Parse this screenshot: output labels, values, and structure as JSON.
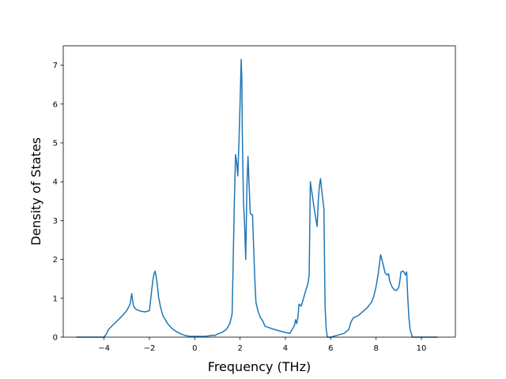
{
  "chart_data": {
    "type": "line",
    "title": "",
    "xlabel": "Frequency (THz)",
    "ylabel": "Density of States",
    "xlim": [
      -5.8,
      11.5
    ],
    "ylim": [
      0,
      7.5
    ],
    "xticks": [
      -4,
      -2,
      0,
      2,
      4,
      6,
      8,
      10
    ],
    "yticks": [
      0,
      1,
      2,
      3,
      4,
      5,
      6,
      7
    ],
    "grid": false,
    "legend": "none",
    "series": [
      {
        "color": "#1f77b4",
        "x": [
          -5.2,
          -4.5,
          -4.0,
          -3.9,
          -3.8,
          -3.6,
          -3.4,
          -3.2,
          -3.0,
          -2.85,
          -2.78,
          -2.74,
          -2.7,
          -2.6,
          -2.4,
          -2.2,
          -2.0,
          -1.85,
          -1.8,
          -1.75,
          -1.7,
          -1.65,
          -1.6,
          -1.5,
          -1.4,
          -1.2,
          -1.0,
          -0.8,
          -0.6,
          -0.4,
          -0.2,
          0.0,
          0.2,
          0.4,
          0.6,
          0.8,
          0.9,
          1.0,
          1.2,
          1.4,
          1.55,
          1.65,
          1.75,
          1.8,
          1.85,
          1.9,
          1.95,
          2.0,
          2.05,
          2.08,
          2.1,
          2.15,
          2.2,
          2.25,
          2.3,
          2.35,
          2.4,
          2.45,
          2.5,
          2.55,
          2.6,
          2.65,
          2.7,
          2.8,
          2.9,
          3.0,
          3.1,
          3.5,
          4.0,
          4.2,
          4.3,
          4.4,
          4.45,
          4.5,
          4.55,
          4.6,
          4.7,
          4.8,
          4.9,
          5.0,
          5.05,
          5.1,
          5.2,
          5.3,
          5.4,
          5.45,
          5.5,
          5.55,
          5.6,
          5.7,
          5.75,
          5.8,
          5.85,
          6.0,
          6.3,
          6.6,
          6.8,
          6.9,
          7.0,
          7.2,
          7.4,
          7.6,
          7.8,
          7.9,
          8.0,
          8.1,
          8.2,
          8.3,
          8.4,
          8.5,
          8.55,
          8.6,
          8.7,
          8.8,
          8.9,
          9.0,
          9.05,
          9.1,
          9.2,
          9.3,
          9.35,
          9.4,
          9.45,
          9.5,
          9.6,
          10.0,
          10.7
        ],
        "y": [
          0.0,
          0.0,
          0.0,
          0.08,
          0.2,
          0.32,
          0.43,
          0.55,
          0.68,
          0.85,
          1.12,
          0.95,
          0.8,
          0.72,
          0.67,
          0.65,
          0.68,
          1.45,
          1.62,
          1.7,
          1.55,
          1.35,
          1.05,
          0.75,
          0.55,
          0.35,
          0.22,
          0.14,
          0.08,
          0.04,
          0.02,
          0.02,
          0.02,
          0.02,
          0.03,
          0.05,
          0.04,
          0.08,
          0.12,
          0.2,
          0.35,
          0.6,
          3.5,
          4.7,
          4.5,
          4.15,
          5.0,
          6.0,
          7.15,
          6.6,
          5.2,
          3.5,
          2.9,
          2.0,
          3.8,
          4.65,
          3.9,
          3.2,
          3.15,
          3.15,
          2.3,
          1.5,
          0.9,
          0.65,
          0.5,
          0.42,
          0.28,
          0.2,
          0.12,
          0.1,
          0.2,
          0.3,
          0.45,
          0.35,
          0.5,
          0.85,
          0.8,
          1.0,
          1.2,
          1.4,
          1.6,
          4.0,
          3.6,
          3.2,
          2.85,
          3.5,
          3.9,
          4.08,
          3.8,
          3.3,
          0.8,
          0.2,
          0.0,
          0.0,
          0.05,
          0.1,
          0.2,
          0.4,
          0.5,
          0.55,
          0.65,
          0.75,
          0.9,
          1.05,
          1.3,
          1.65,
          2.12,
          1.9,
          1.65,
          1.6,
          1.63,
          1.45,
          1.3,
          1.22,
          1.2,
          1.28,
          1.45,
          1.68,
          1.7,
          1.6,
          1.68,
          1.0,
          0.5,
          0.2,
          0.0,
          0.0,
          0.0
        ]
      }
    ]
  }
}
